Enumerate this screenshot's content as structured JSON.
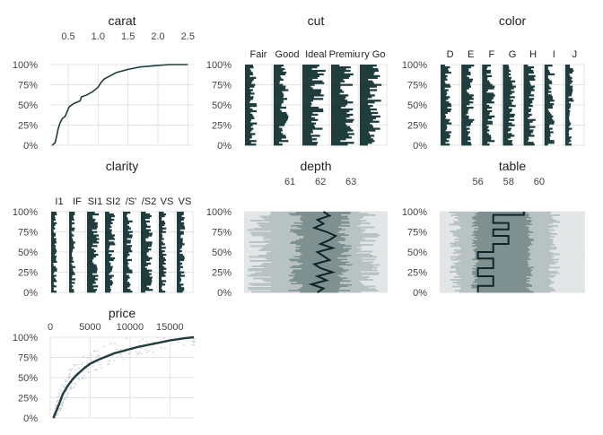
{
  "chart_data": [
    {
      "type": "line",
      "title": "carat",
      "x_ticks": [
        "0.5",
        "1.0",
        "1.5",
        "2.0",
        "2.5"
      ],
      "xlim": [
        0.2,
        2.6
      ],
      "y_ticks": [
        "0%",
        "25%",
        "50%",
        "75%",
        "100%"
      ],
      "ylim": [
        0,
        1
      ],
      "series": [
        {
          "x": [
            0.23,
            0.28,
            0.31,
            0.33,
            0.36,
            0.4,
            0.45,
            0.5,
            0.52,
            0.6,
            0.7,
            0.72,
            0.8,
            0.9,
            1.0,
            1.05,
            1.1,
            1.2,
            1.3,
            1.5,
            1.7,
            2.0,
            2.2,
            2.5
          ],
          "y": [
            0.0,
            0.03,
            0.12,
            0.2,
            0.27,
            0.33,
            0.36,
            0.45,
            0.48,
            0.52,
            0.55,
            0.6,
            0.62,
            0.66,
            0.72,
            0.78,
            0.82,
            0.86,
            0.9,
            0.94,
            0.97,
            0.99,
            1.0,
            1.0
          ]
        }
      ]
    },
    {
      "type": "bar",
      "title": "cut",
      "categories": [
        "Fair",
        "Good",
        "Ideal",
        "Premiu",
        "ry Go"
      ],
      "y_ticks": [
        "0%",
        "25%",
        "50%",
        "75%",
        "100%"
      ],
      "ylim": [
        0,
        1
      ],
      "values": [
        0.03,
        0.09,
        0.4,
        0.26,
        0.22
      ]
    },
    {
      "type": "bar",
      "title": "color",
      "categories": [
        "D",
        "E",
        "F",
        "G",
        "H",
        "I",
        "J"
      ],
      "y_ticks": [
        "0%",
        "25%",
        "50%",
        "75%",
        "100%"
      ],
      "ylim": [
        0,
        1
      ],
      "values": [
        0.13,
        0.18,
        0.18,
        0.21,
        0.15,
        0.1,
        0.05
      ]
    },
    {
      "type": "bar",
      "title": "clarity",
      "categories": [
        "I1",
        "IF",
        "SI1",
        "SI2",
        "VS1",
        "VS2",
        "VVS1",
        "VVS2"
      ],
      "tick_labels": [
        "I1",
        "IF",
        "SI1",
        "SI2",
        "/S'",
        "/S2",
        "VS",
        "VS"
      ],
      "y_ticks": [
        "0%",
        "25%",
        "50%",
        "75%",
        "100%"
      ],
      "ylim": [
        0,
        1
      ],
      "values": [
        0.01,
        0.03,
        0.24,
        0.17,
        0.15,
        0.23,
        0.07,
        0.1
      ]
    },
    {
      "type": "line",
      "title": "depth",
      "x_ticks": [
        "61",
        "62",
        "63"
      ],
      "xlim": [
        59.5,
        64.2
      ],
      "y_ticks": [
        "0%",
        "25%",
        "50%",
        "75%",
        "100%"
      ],
      "ylim": [
        0,
        1
      ],
      "series": [
        {
          "name": "median",
          "x": [
            61.9,
            62.1,
            61.7,
            62.2,
            61.9,
            62.4,
            62.0,
            61.8,
            62.3,
            62.1,
            61.9,
            62.4,
            62.0,
            62.3,
            62.5,
            62.2,
            61.8,
            62.1,
            61.9,
            62.3,
            62.1
          ],
          "y": [
            0.0,
            0.05,
            0.1,
            0.15,
            0.2,
            0.25,
            0.3,
            0.35,
            0.4,
            0.45,
            0.5,
            0.55,
            0.6,
            0.65,
            0.7,
            0.75,
            0.8,
            0.85,
            0.9,
            0.95,
            1.0
          ]
        }
      ]
    },
    {
      "type": "line",
      "title": "table",
      "x_ticks": [
        "56",
        "58",
        "60"
      ],
      "xlim": [
        53.5,
        63.0
      ],
      "y_ticks": [
        "0%",
        "25%",
        "50%",
        "75%",
        "100%"
      ],
      "ylim": [
        0,
        1
      ],
      "series": [
        {
          "name": "median",
          "x": [
            56,
            56,
            57,
            57,
            56,
            56,
            57,
            57,
            56,
            56,
            57,
            57,
            58,
            58,
            57,
            57,
            58,
            58,
            57,
            57,
            59,
            59
          ],
          "y": [
            0.0,
            0.08,
            0.08,
            0.2,
            0.2,
            0.3,
            0.3,
            0.42,
            0.42,
            0.5,
            0.5,
            0.6,
            0.6,
            0.7,
            0.7,
            0.78,
            0.78,
            0.86,
            0.86,
            0.96,
            0.96,
            1.0
          ]
        }
      ]
    },
    {
      "type": "line",
      "title": "price",
      "x_ticks": [
        "0",
        "5000",
        "10000",
        "15000"
      ],
      "xlim": [
        0,
        18000
      ],
      "y_ticks": [
        "0%",
        "25%",
        "50%",
        "75%",
        "100%"
      ],
      "ylim": [
        0,
        1
      ],
      "series": [
        {
          "x": [
            400,
            600,
            900,
            1200,
            1600,
            2200,
            2800,
            3500,
            4300,
            5000,
            6000,
            7000,
            8000,
            9500,
            11000,
            13000,
            15000,
            17000,
            18000
          ],
          "y": [
            0.0,
            0.05,
            0.12,
            0.2,
            0.3,
            0.4,
            0.48,
            0.55,
            0.62,
            0.67,
            0.72,
            0.76,
            0.8,
            0.84,
            0.88,
            0.92,
            0.96,
            0.99,
            1.0
          ]
        }
      ]
    }
  ]
}
